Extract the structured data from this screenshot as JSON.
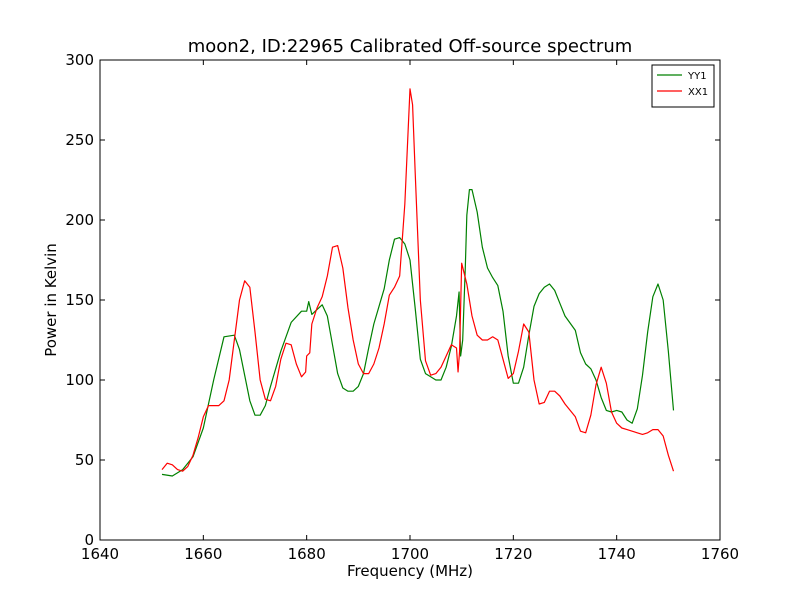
{
  "chart_data": {
    "type": "line",
    "title": "moon2, ID:22965 Calibrated Off-source spectrum",
    "xlabel": "Frequency (MHz)",
    "ylabel": "Power in Kelvin",
    "xlim": [
      1640,
      1760
    ],
    "ylim": [
      0,
      300
    ],
    "xticks": [
      1640,
      1660,
      1680,
      1700,
      1720,
      1740,
      1760
    ],
    "yticks": [
      0,
      50,
      100,
      150,
      200,
      250,
      300
    ],
    "grid": false,
    "legend_position": "top-right",
    "series": [
      {
        "name": "YY1",
        "color": "#008000",
        "points": [
          [
            1652,
            41
          ],
          [
            1654,
            40
          ],
          [
            1656,
            44
          ],
          [
            1658,
            52
          ],
          [
            1660,
            70
          ],
          [
            1662,
            100
          ],
          [
            1664,
            127
          ],
          [
            1666,
            128
          ],
          [
            1667,
            119
          ],
          [
            1668,
            103
          ],
          [
            1669,
            87
          ],
          [
            1670,
            78
          ],
          [
            1671,
            78
          ],
          [
            1672,
            84
          ],
          [
            1673,
            96
          ],
          [
            1675,
            118
          ],
          [
            1677,
            136
          ],
          [
            1679,
            143
          ],
          [
            1680,
            143
          ],
          [
            1680.4,
            149
          ],
          [
            1681,
            141
          ],
          [
            1682,
            144
          ],
          [
            1683,
            147
          ],
          [
            1684,
            140
          ],
          [
            1685,
            122
          ],
          [
            1686,
            104
          ],
          [
            1687,
            95
          ],
          [
            1688,
            93
          ],
          [
            1689,
            93
          ],
          [
            1690,
            96
          ],
          [
            1691,
            104
          ],
          [
            1692,
            120
          ],
          [
            1693,
            135
          ],
          [
            1694,
            146
          ],
          [
            1695,
            157
          ],
          [
            1696,
            175
          ],
          [
            1697,
            188
          ],
          [
            1698,
            189
          ],
          [
            1699,
            185
          ],
          [
            1700,
            175
          ],
          [
            1701,
            145
          ],
          [
            1702,
            113
          ],
          [
            1703,
            104
          ],
          [
            1704,
            102
          ],
          [
            1705,
            100
          ],
          [
            1706,
            100
          ],
          [
            1707,
            108
          ],
          [
            1708,
            121
          ],
          [
            1709,
            140
          ],
          [
            1709.5,
            155
          ],
          [
            1709.8,
            115
          ],
          [
            1710.2,
            125
          ],
          [
            1710.7,
            170
          ],
          [
            1711,
            203
          ],
          [
            1711.5,
            219
          ],
          [
            1712,
            219
          ],
          [
            1713,
            205
          ],
          [
            1714,
            183
          ],
          [
            1715,
            170
          ],
          [
            1716,
            164
          ],
          [
            1717,
            159
          ],
          [
            1718,
            143
          ],
          [
            1719,
            115
          ],
          [
            1720,
            98
          ],
          [
            1721,
            98
          ],
          [
            1722,
            108
          ],
          [
            1723,
            128
          ],
          [
            1724,
            146
          ],
          [
            1725,
            154
          ],
          [
            1726,
            158
          ],
          [
            1727,
            160
          ],
          [
            1728,
            156
          ],
          [
            1729,
            148
          ],
          [
            1730,
            140
          ],
          [
            1732,
            131
          ],
          [
            1733,
            117
          ],
          [
            1734,
            110
          ],
          [
            1735,
            107
          ],
          [
            1736,
            100
          ],
          [
            1737,
            89
          ],
          [
            1738,
            81
          ],
          [
            1739,
            80
          ],
          [
            1740,
            81
          ],
          [
            1741,
            80
          ],
          [
            1742,
            75
          ],
          [
            1743,
            73
          ],
          [
            1744,
            82
          ],
          [
            1745,
            103
          ],
          [
            1746,
            130
          ],
          [
            1747,
            152
          ],
          [
            1748,
            160
          ],
          [
            1749,
            150
          ],
          [
            1750,
            118
          ],
          [
            1751,
            81
          ]
        ]
      },
      {
        "name": "XX1",
        "color": "#ff0000",
        "points": [
          [
            1652,
            44
          ],
          [
            1653,
            48
          ],
          [
            1654,
            47
          ],
          [
            1655,
            44
          ],
          [
            1656,
            43
          ],
          [
            1657,
            46
          ],
          [
            1658,
            53
          ],
          [
            1659,
            64
          ],
          [
            1660,
            77
          ],
          [
            1661,
            84
          ],
          [
            1662,
            84
          ],
          [
            1663,
            84
          ],
          [
            1664,
            87
          ],
          [
            1665,
            100
          ],
          [
            1666,
            125
          ],
          [
            1667,
            150
          ],
          [
            1668,
            162
          ],
          [
            1669,
            158
          ],
          [
            1670,
            130
          ],
          [
            1671,
            100
          ],
          [
            1672,
            88
          ],
          [
            1673,
            87
          ],
          [
            1674,
            96
          ],
          [
            1675,
            113
          ],
          [
            1676,
            123
          ],
          [
            1677,
            122
          ],
          [
            1678,
            110
          ],
          [
            1679,
            102
          ],
          [
            1679.8,
            105
          ],
          [
            1680,
            115
          ],
          [
            1680.6,
            117
          ],
          [
            1681,
            135
          ],
          [
            1682,
            145
          ],
          [
            1683,
            152
          ],
          [
            1684,
            165
          ],
          [
            1685,
            183
          ],
          [
            1686,
            184
          ],
          [
            1687,
            170
          ],
          [
            1688,
            145
          ],
          [
            1689,
            125
          ],
          [
            1690,
            110
          ],
          [
            1691,
            104
          ],
          [
            1692,
            104
          ],
          [
            1693,
            110
          ],
          [
            1694,
            120
          ],
          [
            1695,
            135
          ],
          [
            1696,
            153
          ],
          [
            1697,
            158
          ],
          [
            1698,
            165
          ],
          [
            1699,
            210
          ],
          [
            1700,
            282
          ],
          [
            1700.5,
            272
          ],
          [
            1701,
            230
          ],
          [
            1702,
            150
          ],
          [
            1703,
            112
          ],
          [
            1704,
            103
          ],
          [
            1705,
            104
          ],
          [
            1706,
            108
          ],
          [
            1707,
            115
          ],
          [
            1708,
            122
          ],
          [
            1709,
            120
          ],
          [
            1709.3,
            105
          ],
          [
            1709.6,
            118
          ],
          [
            1710,
            173
          ],
          [
            1711,
            160
          ],
          [
            1712,
            140
          ],
          [
            1713,
            128
          ],
          [
            1714,
            125
          ],
          [
            1715,
            125
          ],
          [
            1716,
            127
          ],
          [
            1717,
            125
          ],
          [
            1718,
            113
          ],
          [
            1719,
            101
          ],
          [
            1720,
            104
          ],
          [
            1721,
            118
          ],
          [
            1722,
            135
          ],
          [
            1723,
            130
          ],
          [
            1724,
            100
          ],
          [
            1725,
            85
          ],
          [
            1726,
            86
          ],
          [
            1727,
            93
          ],
          [
            1728,
            93
          ],
          [
            1729,
            90
          ],
          [
            1730,
            85
          ],
          [
            1731,
            81
          ],
          [
            1732,
            77
          ],
          [
            1733,
            68
          ],
          [
            1734,
            67
          ],
          [
            1735,
            78
          ],
          [
            1736,
            97
          ],
          [
            1737,
            108
          ],
          [
            1738,
            98
          ],
          [
            1739,
            80
          ],
          [
            1740,
            73
          ],
          [
            1741,
            70
          ],
          [
            1742,
            69
          ],
          [
            1743,
            68
          ],
          [
            1745,
            66
          ],
          [
            1746,
            67
          ],
          [
            1747,
            69
          ],
          [
            1748,
            69
          ],
          [
            1749,
            65
          ],
          [
            1750,
            53
          ],
          [
            1751,
            43
          ]
        ]
      }
    ]
  }
}
